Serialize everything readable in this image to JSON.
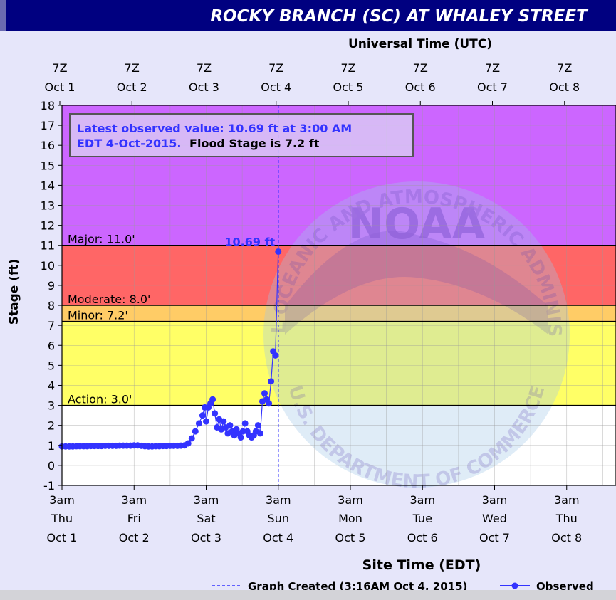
{
  "chart_data": {
    "type": "line",
    "title": "ROCKY BRANCH (SC) AT WHALEY STREET",
    "top_axis_title": "Universal Time (UTC)",
    "top_axis_labels": [
      {
        "line1": "7Z",
        "line2": "Oct 1"
      },
      {
        "line1": "7Z",
        "line2": "Oct 2"
      },
      {
        "line1": "7Z",
        "line2": "Oct 3"
      },
      {
        "line1": "7Z",
        "line2": "Oct 4"
      },
      {
        "line1": "7Z",
        "line2": "Oct 5"
      },
      {
        "line1": "7Z",
        "line2": "Oct 6"
      },
      {
        "line1": "7Z",
        "line2": "Oct 7"
      },
      {
        "line1": "7Z",
        "line2": "Oct 8"
      }
    ],
    "xlabel": "Site Time (EDT)",
    "x_tick_labels": [
      {
        "time": "3am",
        "day": "Thu",
        "date": "Oct 1"
      },
      {
        "time": "3am",
        "day": "Fri",
        "date": "Oct 2"
      },
      {
        "time": "3am",
        "day": "Sat",
        "date": "Oct 3"
      },
      {
        "time": "3am",
        "day": "Sun",
        "date": "Oct 4"
      },
      {
        "time": "3am",
        "day": "Mon",
        "date": "Oct 5"
      },
      {
        "time": "3am",
        "day": "Tue",
        "date": "Oct 6"
      },
      {
        "time": "3am",
        "day": "Wed",
        "date": "Oct 7"
      },
      {
        "time": "3am",
        "day": "Thu",
        "date": "Oct 8"
      }
    ],
    "ylabel": "Stage (ft)",
    "ylim": [
      -1,
      18
    ],
    "xlim_days": [
      0,
      7.7
    ],
    "y_ticks": [
      -1,
      0,
      1,
      2,
      3,
      4,
      5,
      6,
      7,
      8,
      9,
      10,
      11,
      12,
      13,
      14,
      15,
      16,
      17,
      18
    ],
    "grid": true,
    "flood_categories": [
      {
        "name": "Action",
        "label": "Action: 3.0'",
        "stage": 3.0,
        "color": "#ffff66"
      },
      {
        "name": "Minor",
        "label": "Minor: 7.2'",
        "stage": 7.2,
        "color": "#ffcc66"
      },
      {
        "name": "Moderate",
        "label": "Moderate: 8.0'",
        "stage": 8.0,
        "color": "#ff6666"
      },
      {
        "name": "Major",
        "label": "Major: 11.0'",
        "stage": 11.0,
        "color": "#cc66ff"
      }
    ],
    "info_box": {
      "line1": "Latest observed value: 10.69 ft at 3:00 AM",
      "line2a": "EDT 4-Oct-2015.",
      "line2b": "Flood Stage is 7.2 ft"
    },
    "latest_value_label": "10.69 ft",
    "latest": {
      "day": 3.0,
      "stage": 10.69
    },
    "graph_created_day": 3.0,
    "series": [
      {
        "name": "Observed",
        "color": "#3333ff",
        "points": [
          [
            0.0,
            0.95
          ],
          [
            0.05,
            0.95
          ],
          [
            0.1,
            0.95
          ],
          [
            0.15,
            0.95
          ],
          [
            0.2,
            0.96
          ],
          [
            0.25,
            0.96
          ],
          [
            0.3,
            0.96
          ],
          [
            0.35,
            0.96
          ],
          [
            0.4,
            0.97
          ],
          [
            0.45,
            0.97
          ],
          [
            0.5,
            0.97
          ],
          [
            0.55,
            0.97
          ],
          [
            0.6,
            0.98
          ],
          [
            0.65,
            0.98
          ],
          [
            0.7,
            0.98
          ],
          [
            0.75,
            0.98
          ],
          [
            0.8,
            0.99
          ],
          [
            0.85,
            0.99
          ],
          [
            0.9,
            0.99
          ],
          [
            0.95,
            0.99
          ],
          [
            1.0,
            1.0
          ],
          [
            1.05,
            1.0
          ],
          [
            1.1,
            0.98
          ],
          [
            1.15,
            0.96
          ],
          [
            1.2,
            0.95
          ],
          [
            1.25,
            0.95
          ],
          [
            1.3,
            0.96
          ],
          [
            1.35,
            0.96
          ],
          [
            1.4,
            0.97
          ],
          [
            1.45,
            0.97
          ],
          [
            1.5,
            0.98
          ],
          [
            1.55,
            0.98
          ],
          [
            1.6,
            0.98
          ],
          [
            1.65,
            0.99
          ],
          [
            1.7,
            1.0
          ],
          [
            1.75,
            1.1
          ],
          [
            1.8,
            1.35
          ],
          [
            1.85,
            1.7
          ],
          [
            1.9,
            2.1
          ],
          [
            1.95,
            2.5
          ],
          [
            1.98,
            2.9
          ],
          [
            2.0,
            2.2
          ],
          [
            2.03,
            2.9
          ],
          [
            2.06,
            3.1
          ],
          [
            2.09,
            3.3
          ],
          [
            2.12,
            2.6
          ],
          [
            2.15,
            1.9
          ],
          [
            2.18,
            2.3
          ],
          [
            2.21,
            1.8
          ],
          [
            2.24,
            2.2
          ],
          [
            2.27,
            1.9
          ],
          [
            2.3,
            1.6
          ],
          [
            2.33,
            2.0
          ],
          [
            2.36,
            1.7
          ],
          [
            2.39,
            1.5
          ],
          [
            2.42,
            1.8
          ],
          [
            2.45,
            1.6
          ],
          [
            2.48,
            1.4
          ],
          [
            2.51,
            1.7
          ],
          [
            2.54,
            2.1
          ],
          [
            2.57,
            1.7
          ],
          [
            2.6,
            1.5
          ],
          [
            2.63,
            1.4
          ],
          [
            2.66,
            1.5
          ],
          [
            2.69,
            1.7
          ],
          [
            2.72,
            2.0
          ],
          [
            2.75,
            1.6
          ],
          [
            2.78,
            3.2
          ],
          [
            2.81,
            3.6
          ],
          [
            2.84,
            3.3
          ],
          [
            2.87,
            3.1
          ],
          [
            2.9,
            4.2
          ],
          [
            2.93,
            5.7
          ],
          [
            2.96,
            5.5
          ],
          [
            3.0,
            10.69
          ]
        ]
      }
    ],
    "legend": {
      "graph_created_label": "Graph Created (3:16AM Oct 4, 2015)",
      "observed_label": "Observed"
    }
  },
  "watermark": {
    "top_text": "NATIONAL OCEANIC AND ATMOSPHERIC ADMINISTRATION",
    "bottom_text": "U.S. DEPARTMENT OF COMMERCE",
    "center_text": "NOAA"
  }
}
